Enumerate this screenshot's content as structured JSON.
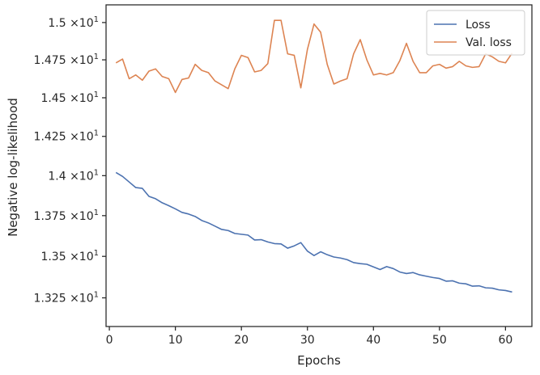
{
  "chart_data": {
    "type": "line",
    "xlabel": "Epochs",
    "ylabel": "Negative log-likelihood",
    "xlim": [
      -0.5,
      64
    ],
    "ylim": [
      13.08,
      15.12
    ],
    "y_scale": "log",
    "x_ticks": [
      0,
      10,
      20,
      30,
      40,
      50,
      60
    ],
    "x_tick_labels": [
      "0",
      "10",
      "20",
      "30",
      "40",
      "50",
      "60"
    ],
    "y_ticks": [
      13.25,
      13.5,
      13.75,
      14.0,
      14.25,
      14.5,
      14.75,
      15.0
    ],
    "y_tick_mantissas": [
      "1.325",
      "1.35",
      "1.375",
      "1.4",
      "1.425",
      "1.45",
      "1.475",
      "1.5"
    ],
    "y_tick_base": "×10",
    "y_tick_exponent": "1",
    "grid": false,
    "legend_position": "top-right",
    "x": [
      1,
      2,
      3,
      4,
      5,
      6,
      7,
      8,
      9,
      10,
      11,
      12,
      13,
      14,
      15,
      16,
      17,
      18,
      19,
      20,
      21,
      22,
      23,
      24,
      25,
      26,
      27,
      28,
      29,
      30,
      31,
      32,
      33,
      34,
      35,
      36,
      37,
      38,
      39,
      40,
      41,
      42,
      43,
      44,
      45,
      46,
      47,
      48,
      49,
      50,
      51,
      52,
      53,
      54,
      55,
      56,
      57,
      58,
      59,
      60,
      61
    ],
    "series": [
      {
        "name": "Loss",
        "color": "#4c72b0",
        "values": [
          14.02,
          13.995,
          13.96,
          13.925,
          13.92,
          13.87,
          13.855,
          13.83,
          13.812,
          13.792,
          13.77,
          13.76,
          13.745,
          13.72,
          13.705,
          13.685,
          13.665,
          13.658,
          13.64,
          13.635,
          13.63,
          13.6,
          13.602,
          13.588,
          13.578,
          13.576,
          13.55,
          13.564,
          13.584,
          13.532,
          13.505,
          13.528,
          13.51,
          13.496,
          13.49,
          13.48,
          13.462,
          13.456,
          13.452,
          13.436,
          13.42,
          13.438,
          13.426,
          13.405,
          13.396,
          13.402,
          13.388,
          13.38,
          13.372,
          13.366,
          13.35,
          13.352,
          13.338,
          13.334,
          13.32,
          13.322,
          13.31,
          13.308,
          13.298,
          13.294,
          13.285
        ]
      },
      {
        "name": "Val. loss",
        "color": "#dd8452",
        "values": [
          14.73,
          14.755,
          14.625,
          14.65,
          14.615,
          14.675,
          14.69,
          14.64,
          14.625,
          14.535,
          14.62,
          14.63,
          14.72,
          14.68,
          14.665,
          14.61,
          14.585,
          14.56,
          14.69,
          14.78,
          14.765,
          14.67,
          14.68,
          14.725,
          15.015,
          15.015,
          14.79,
          14.78,
          14.565,
          14.82,
          14.99,
          14.935,
          14.72,
          14.59,
          14.61,
          14.625,
          14.79,
          14.885,
          14.75,
          14.65,
          14.66,
          14.65,
          14.665,
          14.745,
          14.86,
          14.74,
          14.665,
          14.665,
          14.71,
          14.72,
          14.695,
          14.705,
          14.74,
          14.71,
          14.7,
          14.705,
          14.79,
          14.77,
          14.74,
          14.73,
          14.795
        ]
      }
    ]
  }
}
